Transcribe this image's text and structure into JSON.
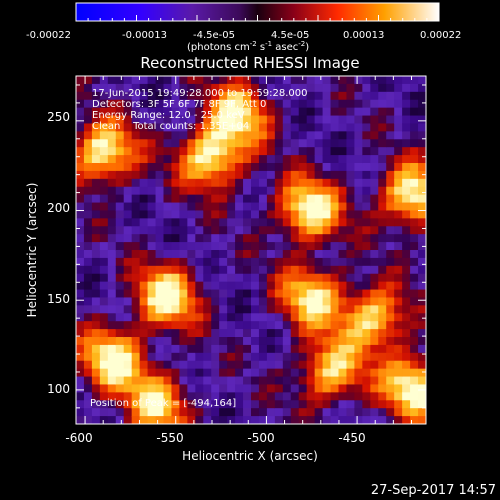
{
  "chart_data": {
    "type": "heatmap",
    "title": "Reconstructed RHESSI Image",
    "xlabel": "Heliocentric X (arcsec)",
    "ylabel": "Heliocentric Y (arcsec)",
    "xlim": [
      -605,
      -412
    ],
    "ylim": [
      81,
      275
    ],
    "x_ticks": [
      "-600",
      "-550",
      "-500",
      "-450"
    ],
    "y_ticks": [
      "100",
      "150",
      "200",
      "250"
    ],
    "x_tick_values": [
      -600,
      -550,
      -500,
      -450
    ],
    "y_tick_values": [
      100,
      150,
      200,
      250
    ],
    "colorbar": {
      "ticks": [
        "-0.00022",
        "-0.00013",
        "-4.5e-05",
        "4.5e-05",
        "0.00013",
        "0.00022"
      ],
      "units_main": "(photons cm",
      "units_exp1": "-2",
      "units_mid": " s",
      "units_exp2": "-1",
      "units_end": " asec",
      "units_exp3": "-2",
      "units_close": ")"
    },
    "annotations": {
      "time_range": "17-Jun-2015 19:49:28.000 to 19:59:28.000",
      "detectors": "Detectors: 3F 5F 6F 7F 8F 9F, Att 0",
      "energy": "Energy Range: 12.0 - 25.0 keV",
      "method": "Clean    Total counts: 1.35E+04",
      "peak": "Position of Peak = [-494,164]"
    },
    "bright_features": [
      {
        "x": -590,
        "y": 232,
        "level": 1.0
      },
      {
        "x": -530,
        "y": 230,
        "level": 1.0
      },
      {
        "x": -555,
        "y": 152,
        "level": 0.95
      },
      {
        "x": -585,
        "y": 117,
        "level": 0.95
      },
      {
        "x": -477,
        "y": 200,
        "level": 1.0
      },
      {
        "x": -475,
        "y": 152,
        "level": 0.85
      },
      {
        "x": -420,
        "y": 208,
        "level": 1.0
      },
      {
        "x": -440,
        "y": 140,
        "level": 0.9
      },
      {
        "x": -418,
        "y": 102,
        "level": 1.0
      },
      {
        "x": -465,
        "y": 110,
        "level": 0.85
      },
      {
        "x": -515,
        "y": 255,
        "level": 0.8
      },
      {
        "x": -560,
        "y": 92,
        "level": 0.8
      }
    ]
  },
  "footer": {
    "timestamp": "27-Sep-2017 14:57"
  }
}
